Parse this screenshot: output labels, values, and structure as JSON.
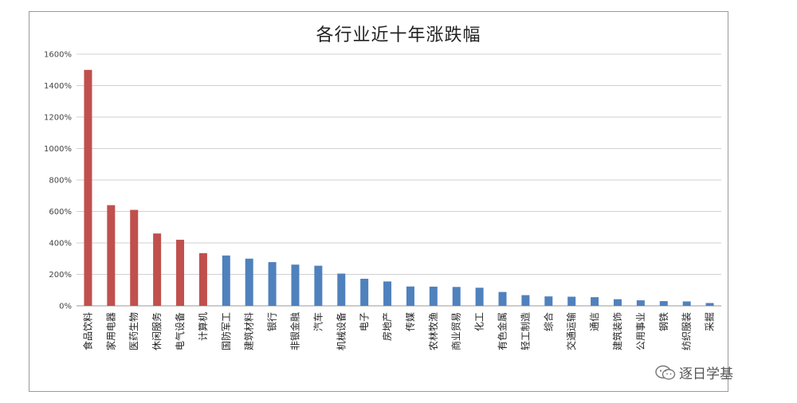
{
  "chart_data": {
    "type": "bar",
    "title": "各行业近十年涨跌幅",
    "xlabel": "",
    "ylabel": "",
    "ylim": [
      0,
      1600
    ],
    "yticks": [
      "0%",
      "200%",
      "400%",
      "600%",
      "800%",
      "1000%",
      "1200%",
      "1400%",
      "1600%"
    ],
    "grid": true,
    "categories": [
      "食品饮料",
      "家用电器",
      "医药生物",
      "休闲服务",
      "电气设备",
      "计算机",
      "国防军工",
      "建筑材料",
      "银行",
      "非银金融",
      "汽车",
      "机械设备",
      "电子",
      "房地产",
      "传媒",
      "农林牧渔",
      "商业贸易",
      "化工",
      "有色金属",
      "轻工制造",
      "综合",
      "交通运输",
      "通信",
      "建筑装饰",
      "公用事业",
      "钢铁",
      "纺织服装",
      "采掘"
    ],
    "values": [
      1500,
      640,
      610,
      460,
      420,
      335,
      320,
      300,
      278,
      262,
      255,
      205,
      172,
      155,
      123,
      122,
      120,
      115,
      88,
      68,
      60,
      58,
      55,
      42,
      35,
      30,
      28,
      18
    ],
    "colors": {
      "highlight": "#c0504d",
      "normal": "#4f81bd"
    },
    "highlight_count": 6
  },
  "watermark": {
    "text": "逐日学基",
    "icon": "wechat-icon"
  }
}
